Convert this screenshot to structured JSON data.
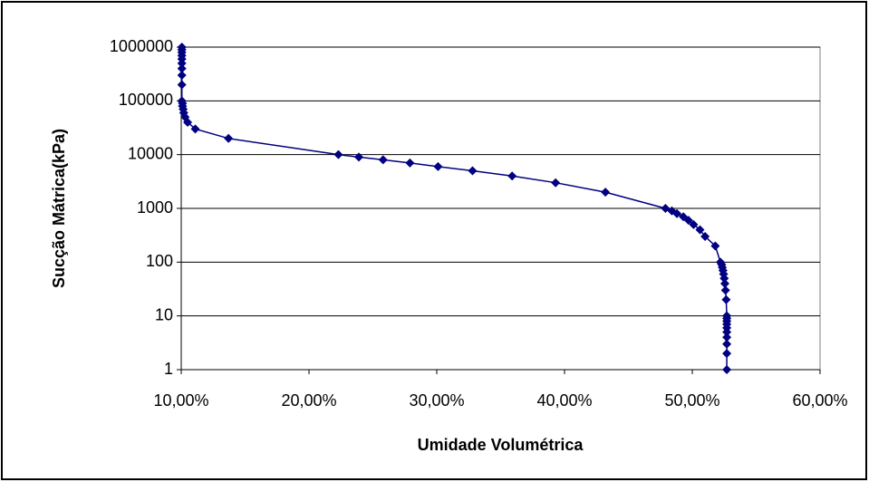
{
  "chart_data": {
    "type": "line",
    "x_label": "Umidade Volumétrica",
    "y_label": "Sucção Mátrica(kPa)",
    "x": [
      10.05,
      10.05,
      10.05,
      10.05,
      10.05,
      10.05,
      10.05,
      10.05,
      10.05,
      10.05,
      10.1,
      10.1,
      10.15,
      10.2,
      10.3,
      10.5,
      11.1,
      13.7,
      22.3,
      23.9,
      25.8,
      27.9,
      30.1,
      32.8,
      35.9,
      39.3,
      43.2,
      47.9,
      48.4,
      48.8,
      49.3,
      49.7,
      50.1,
      50.6,
      51.0,
      51.8,
      52.2,
      52.3,
      52.35,
      52.4,
      52.45,
      52.5,
      52.55,
      52.6,
      52.65,
      52.7,
      52.7,
      52.7,
      52.7,
      52.7,
      52.7,
      52.7,
      52.7,
      52.7,
      52.7
    ],
    "values": [
      1000000,
      900000,
      800000,
      700000,
      600000,
      500000,
      400000,
      300000,
      200000,
      100000,
      90000,
      80000,
      70000,
      60000,
      50000,
      40000,
      30000,
      20000,
      10000,
      9000,
      8000,
      7000,
      6000,
      5000,
      4000,
      3000,
      2000,
      1000,
      900,
      800,
      700,
      600,
      500,
      400,
      300,
      200,
      100,
      90,
      80,
      70,
      60,
      50,
      40,
      30,
      20,
      10,
      9,
      8,
      7,
      6,
      5,
      4,
      3,
      2,
      1
    ],
    "color": "#000080",
    "xlim": [
      10,
      60
    ],
    "xticks": [
      {
        "value": 10,
        "label": "10,00%"
      },
      {
        "value": 20,
        "label": "20,00%"
      },
      {
        "value": 30,
        "label": "30,00%"
      },
      {
        "value": 40,
        "label": "40,00%"
      },
      {
        "value": 50,
        "label": "50,00%"
      },
      {
        "value": 60,
        "label": "60,00%"
      }
    ],
    "ylim": [
      1,
      1000000
    ],
    "yticks": [
      1,
      10,
      100,
      1000,
      10000,
      100000,
      1000000
    ],
    "y_log_scale": true,
    "grid": true
  }
}
